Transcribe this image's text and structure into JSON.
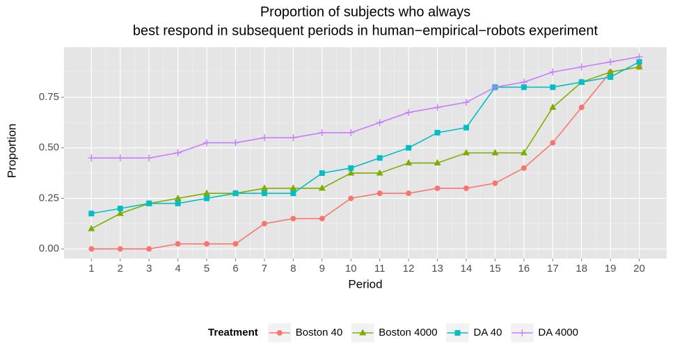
{
  "chart_data": {
    "type": "line",
    "title": [
      "Proportion of subjects who always",
      "best respond in subsequent periods in human−empirical−robots experiment"
    ],
    "x_label": "Period",
    "y_label": "Proportion",
    "x": [
      1,
      2,
      3,
      4,
      5,
      6,
      7,
      8,
      9,
      10,
      11,
      12,
      13,
      14,
      15,
      16,
      17,
      18,
      19,
      20
    ],
    "xlim": [
      0.05,
      20.95
    ],
    "xticks": [
      1,
      2,
      3,
      4,
      5,
      6,
      7,
      8,
      9,
      10,
      11,
      12,
      13,
      14,
      15,
      16,
      17,
      18,
      19,
      20
    ],
    "ylim": [
      -0.0475,
      0.9975
    ],
    "yticks": [
      {
        "value": 0,
        "label": "0.00"
      },
      {
        "value": 0.25,
        "label": "0.25"
      },
      {
        "value": 0.5,
        "label": "0.50"
      },
      {
        "value": 0.75,
        "label": "0.75"
      }
    ],
    "grid": true,
    "legend_title": "Treatment",
    "legend_position": "bottom",
    "series": [
      {
        "name": "Boston 40",
        "color": "#f8766d",
        "marker": "circle",
        "values": [
          0,
          0,
          0,
          0.025,
          0.025,
          0.025,
          0.125,
          0.15,
          0.15,
          0.25,
          0.275,
          0.275,
          0.3,
          0.3,
          0.325,
          0.4,
          0.525,
          0.7,
          0.875,
          0.9
        ]
      },
      {
        "name": "Boston 4000",
        "color": "#7cae00",
        "marker": "triangle",
        "values": [
          0.1,
          0.175,
          0.225,
          0.25,
          0.275,
          0.275,
          0.3,
          0.3,
          0.3,
          0.375,
          0.375,
          0.425,
          0.425,
          0.475,
          0.475,
          0.475,
          0.7,
          0.825,
          0.875,
          0.9
        ]
      },
      {
        "name": "DA 40",
        "color": "#00bfc4",
        "marker": "square",
        "values": [
          0.175,
          0.2,
          0.225,
          0.225,
          0.25,
          0.275,
          0.275,
          0.275,
          0.375,
          0.4,
          0.45,
          0.5,
          0.575,
          0.6,
          0.8,
          0.8,
          0.8,
          0.825,
          0.85,
          0.925
        ]
      },
      {
        "name": "DA 4000",
        "color": "#c77cff",
        "marker": "plus",
        "values": [
          0.45,
          0.45,
          0.45,
          0.475,
          0.525,
          0.525,
          0.55,
          0.55,
          0.575,
          0.575,
          0.625,
          0.675,
          0.7,
          0.725,
          0.8,
          0.825,
          0.875,
          0.9,
          0.925,
          0.95
        ]
      }
    ]
  }
}
